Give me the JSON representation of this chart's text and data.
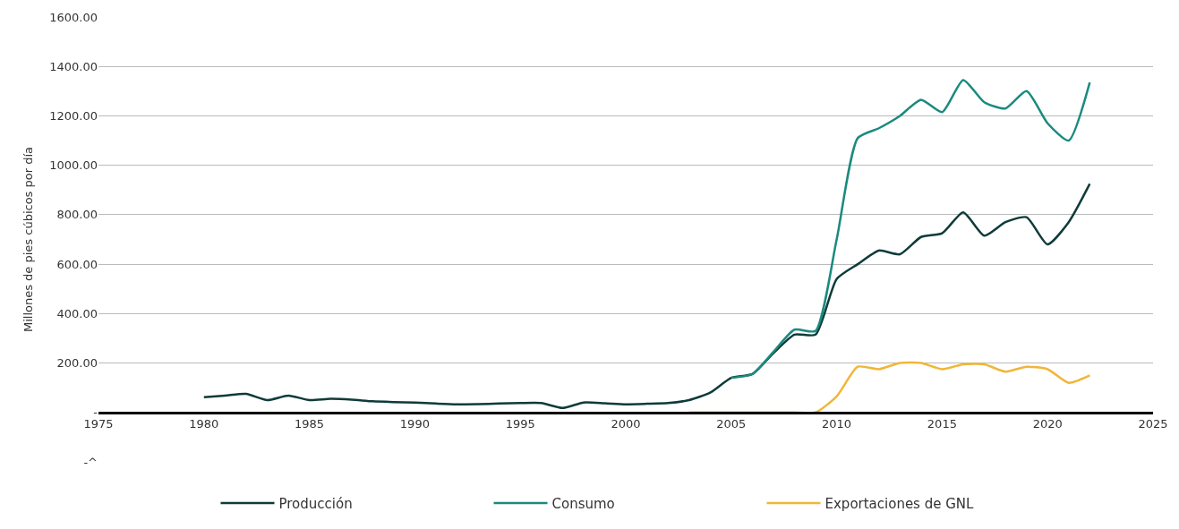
{
  "chart_data": {
    "type": "line",
    "ylabel": "Millones de pies cúbicos por día",
    "xlim": [
      1975,
      2025
    ],
    "xticks": [
      1975,
      1980,
      1985,
      1990,
      1995,
      2000,
      2005,
      2010,
      2015,
      2020,
      2025
    ],
    "ylim": [
      -200,
      1600
    ],
    "yticks": [
      {
        "value": -200,
        "label": "-^"
      },
      {
        "value": 0,
        "label": "-"
      },
      {
        "value": 200,
        "label": "200.00"
      },
      {
        "value": 400,
        "label": "400.00"
      },
      {
        "value": 600,
        "label": "600.00"
      },
      {
        "value": 800,
        "label": "800.00"
      },
      {
        "value": 1000,
        "label": "1000.00"
      },
      {
        "value": 1200,
        "label": "1200.00"
      },
      {
        "value": 1400,
        "label": "1400.00"
      },
      {
        "value": 1600,
        "label": "1600.00"
      }
    ],
    "grid": "y",
    "legend": "bottom",
    "marker": "none",
    "line_style": "solid",
    "series": [
      {
        "name": "Producción",
        "color": "#0f3b3a",
        "x": [
          1980,
          1981,
          1982,
          1983,
          1984,
          1985,
          1986,
          1987,
          1988,
          1989,
          1990,
          1991,
          1992,
          1993,
          1994,
          1995,
          1996,
          1997,
          1998,
          1999,
          2000,
          2001,
          2002,
          2003,
          2004,
          2005,
          2006,
          2007,
          2008,
          2009,
          2010,
          2011,
          2012,
          2013,
          2014,
          2015,
          2016,
          2017,
          2018,
          2019,
          2020,
          2021,
          2022
        ],
        "values": [
          62,
          68,
          75,
          50,
          68,
          50,
          55,
          52,
          45,
          42,
          40,
          36,
          33,
          34,
          36,
          38,
          38,
          18,
          40,
          37,
          33,
          35,
          38,
          50,
          80,
          140,
          155,
          240,
          315,
          315,
          540,
          600,
          655,
          640,
          710,
          725,
          810,
          715,
          770,
          790,
          680,
          770,
          925
        ]
      },
      {
        "name": "Consumo",
        "color": "#1a8a7e",
        "x": [
          2005,
          2006,
          2007,
          2008,
          2009,
          2010,
          2011,
          2012,
          2013,
          2014,
          2015,
          2016,
          2017,
          2018,
          2019,
          2020,
          2021,
          2022
        ],
        "values": [
          140,
          155,
          245,
          335,
          330,
          700,
          1110,
          1150,
          1200,
          1265,
          1215,
          1345,
          1255,
          1230,
          1300,
          1170,
          1100,
          1335
        ]
      },
      {
        "name": "Exportaciones de GNL",
        "color": "#f0b638",
        "x": [
          2003,
          2004,
          2005,
          2006,
          2007,
          2008,
          2009,
          2010,
          2011,
          2012,
          2013,
          2014,
          2015,
          2016,
          2017,
          2018,
          2019,
          2020,
          2021,
          2022
        ],
        "values": [
          0,
          0,
          0,
          0,
          0,
          0,
          0,
          65,
          185,
          175,
          200,
          200,
          175,
          195,
          195,
          165,
          185,
          175,
          120,
          150
        ]
      }
    ]
  }
}
